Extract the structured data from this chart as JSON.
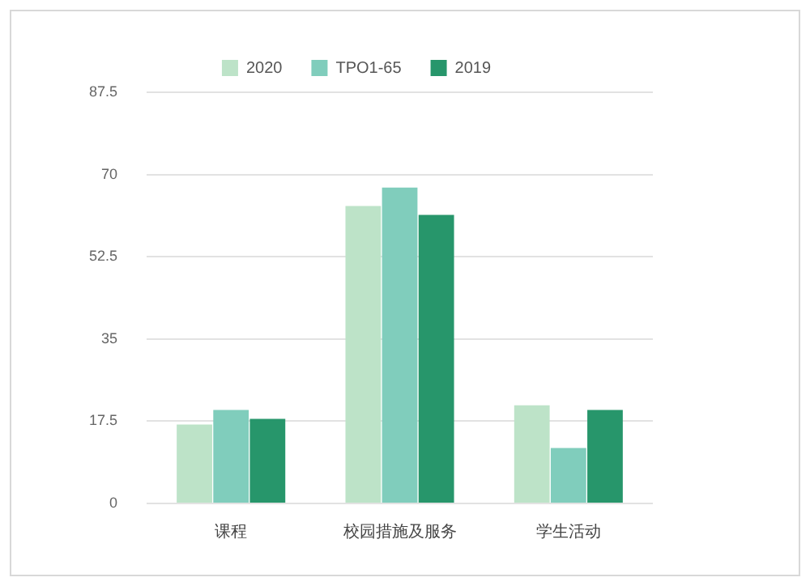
{
  "chart_data": {
    "type": "bar",
    "categories": [
      "课程",
      "校园措施及服务",
      "学生活动"
    ],
    "series": [
      {
        "name": "2020",
        "color": "#bde3c8",
        "values": [
          16.8,
          63.3,
          20.9
        ]
      },
      {
        "name": "TPO1-65",
        "color": "#80cdbc",
        "values": [
          19.9,
          67.2,
          11.8
        ]
      },
      {
        "name": "2019",
        "color": "#27966b",
        "values": [
          18,
          61.4,
          19.9
        ]
      }
    ],
    "ylim": [
      0,
      87.5
    ],
    "yticks": [
      0,
      17.5,
      35,
      52.5,
      70,
      87.5
    ],
    "grid": "y",
    "legend": "top"
  }
}
